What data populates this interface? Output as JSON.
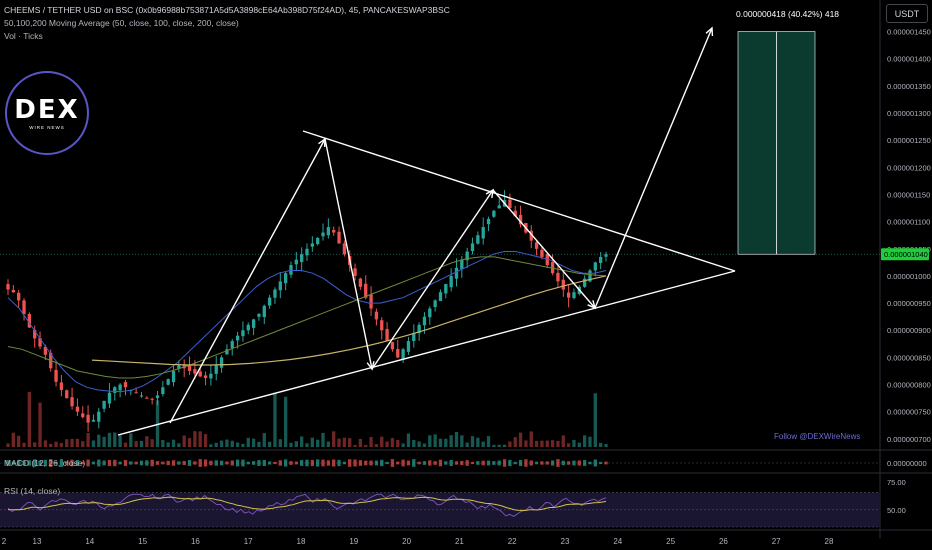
{
  "header": {
    "symbol_line": "CHEEMS / TETHER USD on BSC (0x0b96988b753871A5d5A3898cE64Ab398D75f24AD), 45, PANCAKESWAP3BSC",
    "ma_line": "50,100,200 Moving Average (50, close, 100, close, 200, close)",
    "vol_line": "Vol · Ticks"
  },
  "currency_button": "USDT",
  "logo": {
    "main": "DEX",
    "sub": "WIRE NEWS"
  },
  "watermark": "Follow @DEXWireNews",
  "target_label": "0.000000418 (40.42%) 418",
  "colors": {
    "up": "#26a69a",
    "down": "#ef5350",
    "ma50": "#3b5fcf",
    "ma100": "#6e8a3a",
    "ma200": "#c9b36a",
    "rsi": "#7e57c2",
    "rsi_ma": "#d4c24a",
    "projection_box": "#0b3b2e",
    "price_badge": "#1fcc3a"
  },
  "panes": {
    "macd_label": "MACD (12, 26, close)",
    "macd_axis": "0.00000000",
    "rsi_label": "RSI (14, close)",
    "rsi_axis": [
      "75.00",
      "50.00"
    ]
  },
  "chart_data": {
    "type": "candlestick",
    "price_axis": [
      "0.000001450",
      "0.000001400",
      "0.000001350",
      "0.000001300",
      "0.000001250",
      "0.000001200",
      "0.000001150",
      "0.000001100",
      "0.000001050",
      "0.000001000",
      "0.000000950",
      "0.000000900",
      "0.000000850",
      "0.000000800",
      "0.000000750",
      "0.000000700"
    ],
    "ylim": [
      6.85e-07,
      1.475e-06
    ],
    "time_axis": [
      "2",
      "13",
      "14",
      "15",
      "16",
      "17",
      "18",
      "19",
      "20",
      "21",
      "22",
      "23",
      "24",
      "25",
      "26",
      "27",
      "28"
    ],
    "current_price": "0.00000104",
    "path_close": [
      9.75e-07,
      9.7e-07,
      9.55e-07,
      9.3e-07,
      9.05e-07,
      8.85e-07,
      8.7e-07,
      8.55e-07,
      8.3e-07,
      8.05e-07,
      7.9e-07,
      7.75e-07,
      7.6e-07,
      7.5e-07,
      7.4e-07,
      7.3e-07,
      7.35e-07,
      7.5e-07,
      7.7e-07,
      7.85e-07,
      7.95e-07,
      8e-07,
      7.95e-07,
      7.9e-07,
      7.85e-07,
      7.8e-07,
      7.75e-07,
      7.72e-07,
      7.8e-07,
      7.95e-07,
      8.1e-07,
      8.25e-07,
      8.35e-07,
      8.3e-07,
      8.25e-07,
      8.2e-07,
      8.15e-07,
      8.12e-07,
      8.2e-07,
      8.35e-07,
      8.5e-07,
      8.65e-07,
      8.8e-07,
      8.9e-07,
      9e-07,
      9.1e-07,
      9.2e-07,
      9.3e-07,
      9.45e-07,
      9.6e-07,
      9.75e-07,
      9.9e-07,
      1.005e-06,
      1.02e-06,
      1.03e-06,
      1.04e-06,
      1.05e-06,
      1.06e-06,
      1.07e-06,
      1.08e-06,
      1.09e-06,
      1.08e-06,
      1.06e-06,
      1.04e-06,
      1.02e-06,
      1e-06,
      9.8e-07,
      9.6e-07,
      9.4e-07,
      9.2e-07,
      9e-07,
      8.8e-07,
      8.65e-07,
      8.5e-07,
      8.65e-07,
      8.8e-07,
      8.95e-07,
      9.1e-07,
      9.25e-07,
      9.4e-07,
      9.55e-07,
      9.7e-07,
      9.85e-07,
      1e-06,
      1.015e-06,
      1.03e-06,
      1.045e-06,
      1.06e-06,
      1.075e-06,
      1.09e-06,
      1.105e-06,
      1.12e-06,
      1.13e-06,
      1.14e-06,
      1.125e-06,
      1.11e-06,
      1.095e-06,
      1.08e-06,
      1.065e-06,
      1.05e-06,
      1.035e-06,
      1.02e-06,
      1.005e-06,
      9.9e-07,
      9.75e-07,
      9.6e-07,
      9.7e-07,
      9.8e-07,
      9.95e-07,
      1.01e-06,
      1.025e-06,
      1.035e-06,
      1.04e-06
    ],
    "ma50": [
      9.6e-07,
      9.4e-07,
      9.1e-07,
      8.8e-07,
      8.5e-07,
      8.25e-07,
      8.05e-07,
      7.95e-07,
      7.9e-07,
      7.88e-07,
      7.87e-07,
      7.9e-07,
      7.98e-07,
      8.1e-07,
      8.25e-07,
      8.4e-07,
      8.6e-07,
      8.8e-07,
      9e-07,
      9.2e-07,
      9.4e-07,
      9.6e-07,
      9.8e-07,
      9.95e-07,
      1.005e-06,
      1.01e-06,
      1.01e-06,
      1.005e-06,
      9.95e-07,
      9.8e-07,
      9.65e-07,
      9.55e-07,
      9.5e-07,
      9.5e-07,
      9.55e-07,
      9.6e-07,
      9.7e-07,
      9.8e-07,
      9.9e-07,
      1e-06,
      1.01e-06,
      1.02e-06,
      1.03e-06,
      1.04e-06,
      1.045e-06,
      1.045e-06,
      1.04e-06,
      1.035e-06,
      1.03e-06,
      1.02e-06,
      1.01e-06,
      1.005e-06,
      1.005e-06,
      1.01e-06
    ],
    "ma100": [
      8.7e-07,
      8.65e-07,
      8.55e-07,
      8.45e-07,
      8.35e-07,
      8.25e-07,
      8.2e-07,
      8.15e-07,
      8.12e-07,
      8.12e-07,
      8.15e-07,
      8.2e-07,
      8.27e-07,
      8.35e-07,
      8.45e-07,
      8.55e-07,
      8.65e-07,
      8.75e-07,
      8.85e-07,
      8.95e-07,
      9.05e-07,
      9.15e-07,
      9.25e-07,
      9.35e-07,
      9.45e-07,
      9.55e-07,
      9.65e-07,
      9.75e-07,
      9.85e-07,
      9.95e-07,
      1.005e-06,
      1.015e-06,
      1.025e-06,
      1.032e-06,
      1.035e-06,
      1.035e-06,
      1.03e-06,
      1.025e-06,
      1.02e-06,
      1.015e-06,
      1.01e-06,
      1.005e-06,
      1.002e-06,
      1e-06
    ],
    "ma200": [
      8.45e-07,
      8.43e-07,
      8.41e-07,
      8.39e-07,
      8.37e-07,
      8.36e-07,
      8.36e-07,
      8.37e-07,
      8.39e-07,
      8.42e-07,
      8.46e-07,
      8.51e-07,
      8.57e-07,
      8.64e-07,
      8.72e-07,
      8.81e-07,
      8.91e-07,
      9.02e-07,
      9.14e-07,
      9.26e-07,
      9.38e-07,
      9.5e-07,
      9.62e-07,
      9.73e-07,
      9.83e-07,
      9.92e-07,
      1e-06
    ],
    "rsi_level": 50,
    "target_pct": "40.42%"
  }
}
